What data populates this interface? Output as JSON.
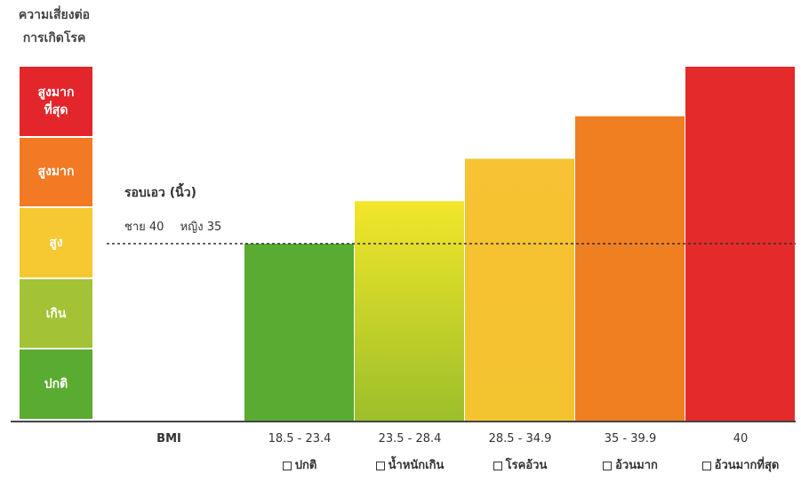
{
  "risk_axis": {
    "title_line1": "ความเสี่ยงต่อ",
    "title_line2": "การเกิดโรค",
    "levels": [
      {
        "label": "สูงมาก\nที่สุด",
        "color": "#e3262b"
      },
      {
        "label": "สูงมาก",
        "color": "#f27a24"
      },
      {
        "label": "สูง",
        "color": "#f6c832"
      },
      {
        "label": "เกิน",
        "color": "#a3c235"
      },
      {
        "label": "ปกติ",
        "color": "#5aab31"
      }
    ]
  },
  "waist": {
    "title": "รอบเอว (นิ้ว)",
    "male": "ชาย 40",
    "female": "หญิง 35",
    "line_risk_level": 2.5
  },
  "chart_data": {
    "type": "bar",
    "title": "",
    "xlabel": "BMI",
    "ylabel": "ความเสี่ยงต่อการเกิดโรค",
    "categories": [
      "18.5 - 23.4",
      "23.5 - 28.4",
      "28.5 - 34.9",
      "35 - 39.9",
      "40"
    ],
    "category_names": [
      "ปกติ",
      "น้ำหนักเกิน",
      "โรคอ้วน",
      "อ้วนมาก",
      "อ้วนมากที่สุด"
    ],
    "values": [
      2.5,
      3.1,
      3.7,
      4.3,
      5.0
    ],
    "ylim": [
      0,
      5
    ],
    "bar_colors_top": [
      "#5aab31",
      "#f3e62a",
      "#f7c233",
      "#f07f22",
      "#e42a2a"
    ],
    "bar_colors_bottom": [
      "#5aab31",
      "#9bbf2a",
      "#f4c330",
      "#f07f22",
      "#e42a2a"
    ],
    "grid": false,
    "legend": "none"
  }
}
